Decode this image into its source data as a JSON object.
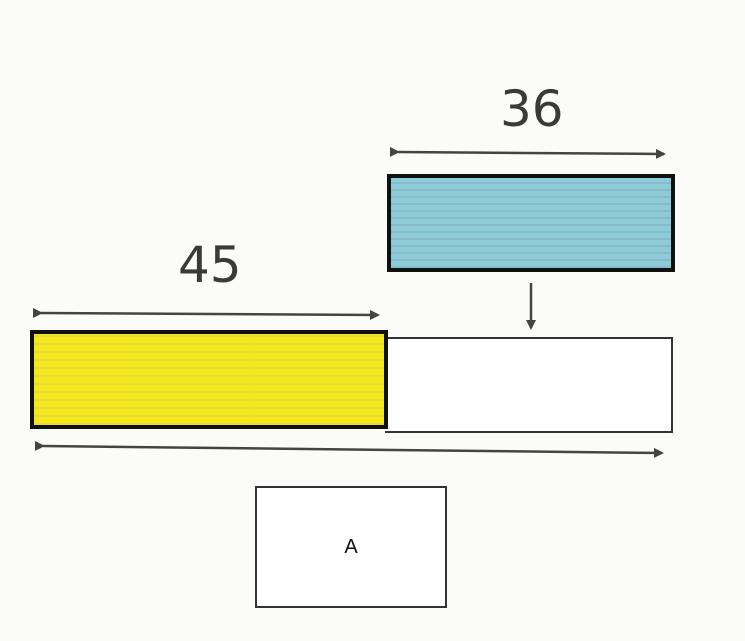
{
  "diagram": {
    "top_value": "36",
    "left_value": "45",
    "answer_label": "A"
  },
  "colors": {
    "blue_bar": "#8ccbd8",
    "yellow_bar": "#f4e81a",
    "outline": "#111111",
    "arrow": "#444444"
  }
}
